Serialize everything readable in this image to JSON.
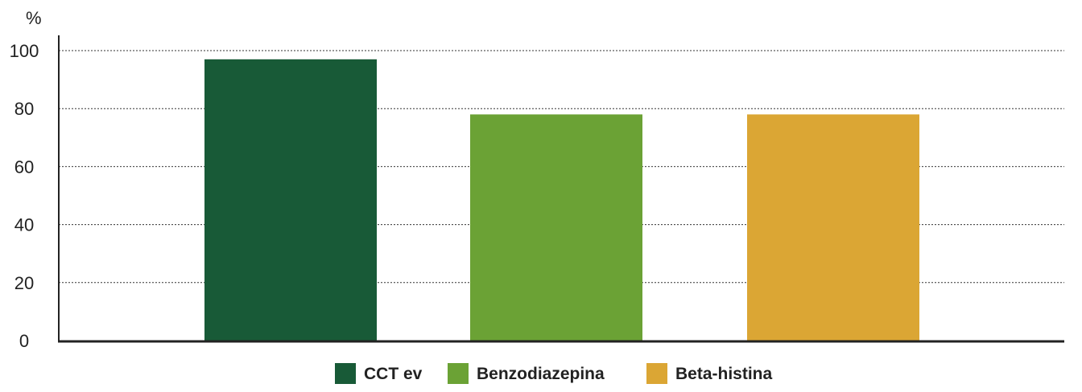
{
  "chart_data": {
    "type": "bar",
    "title": "",
    "xlabel": "",
    "ylabel": "%",
    "ylim": [
      0,
      100
    ],
    "yticks": [
      0,
      20,
      40,
      60,
      80,
      100
    ],
    "grid": true,
    "grid_style": "dotted horizontal",
    "legend_position": "bottom-center",
    "categories": [
      "CCT ev",
      "Benzodiazepina",
      "Beta-histina"
    ],
    "values": [
      97,
      78,
      78
    ],
    "colors": [
      "#185a37",
      "#6ba235",
      "#dba634"
    ]
  }
}
